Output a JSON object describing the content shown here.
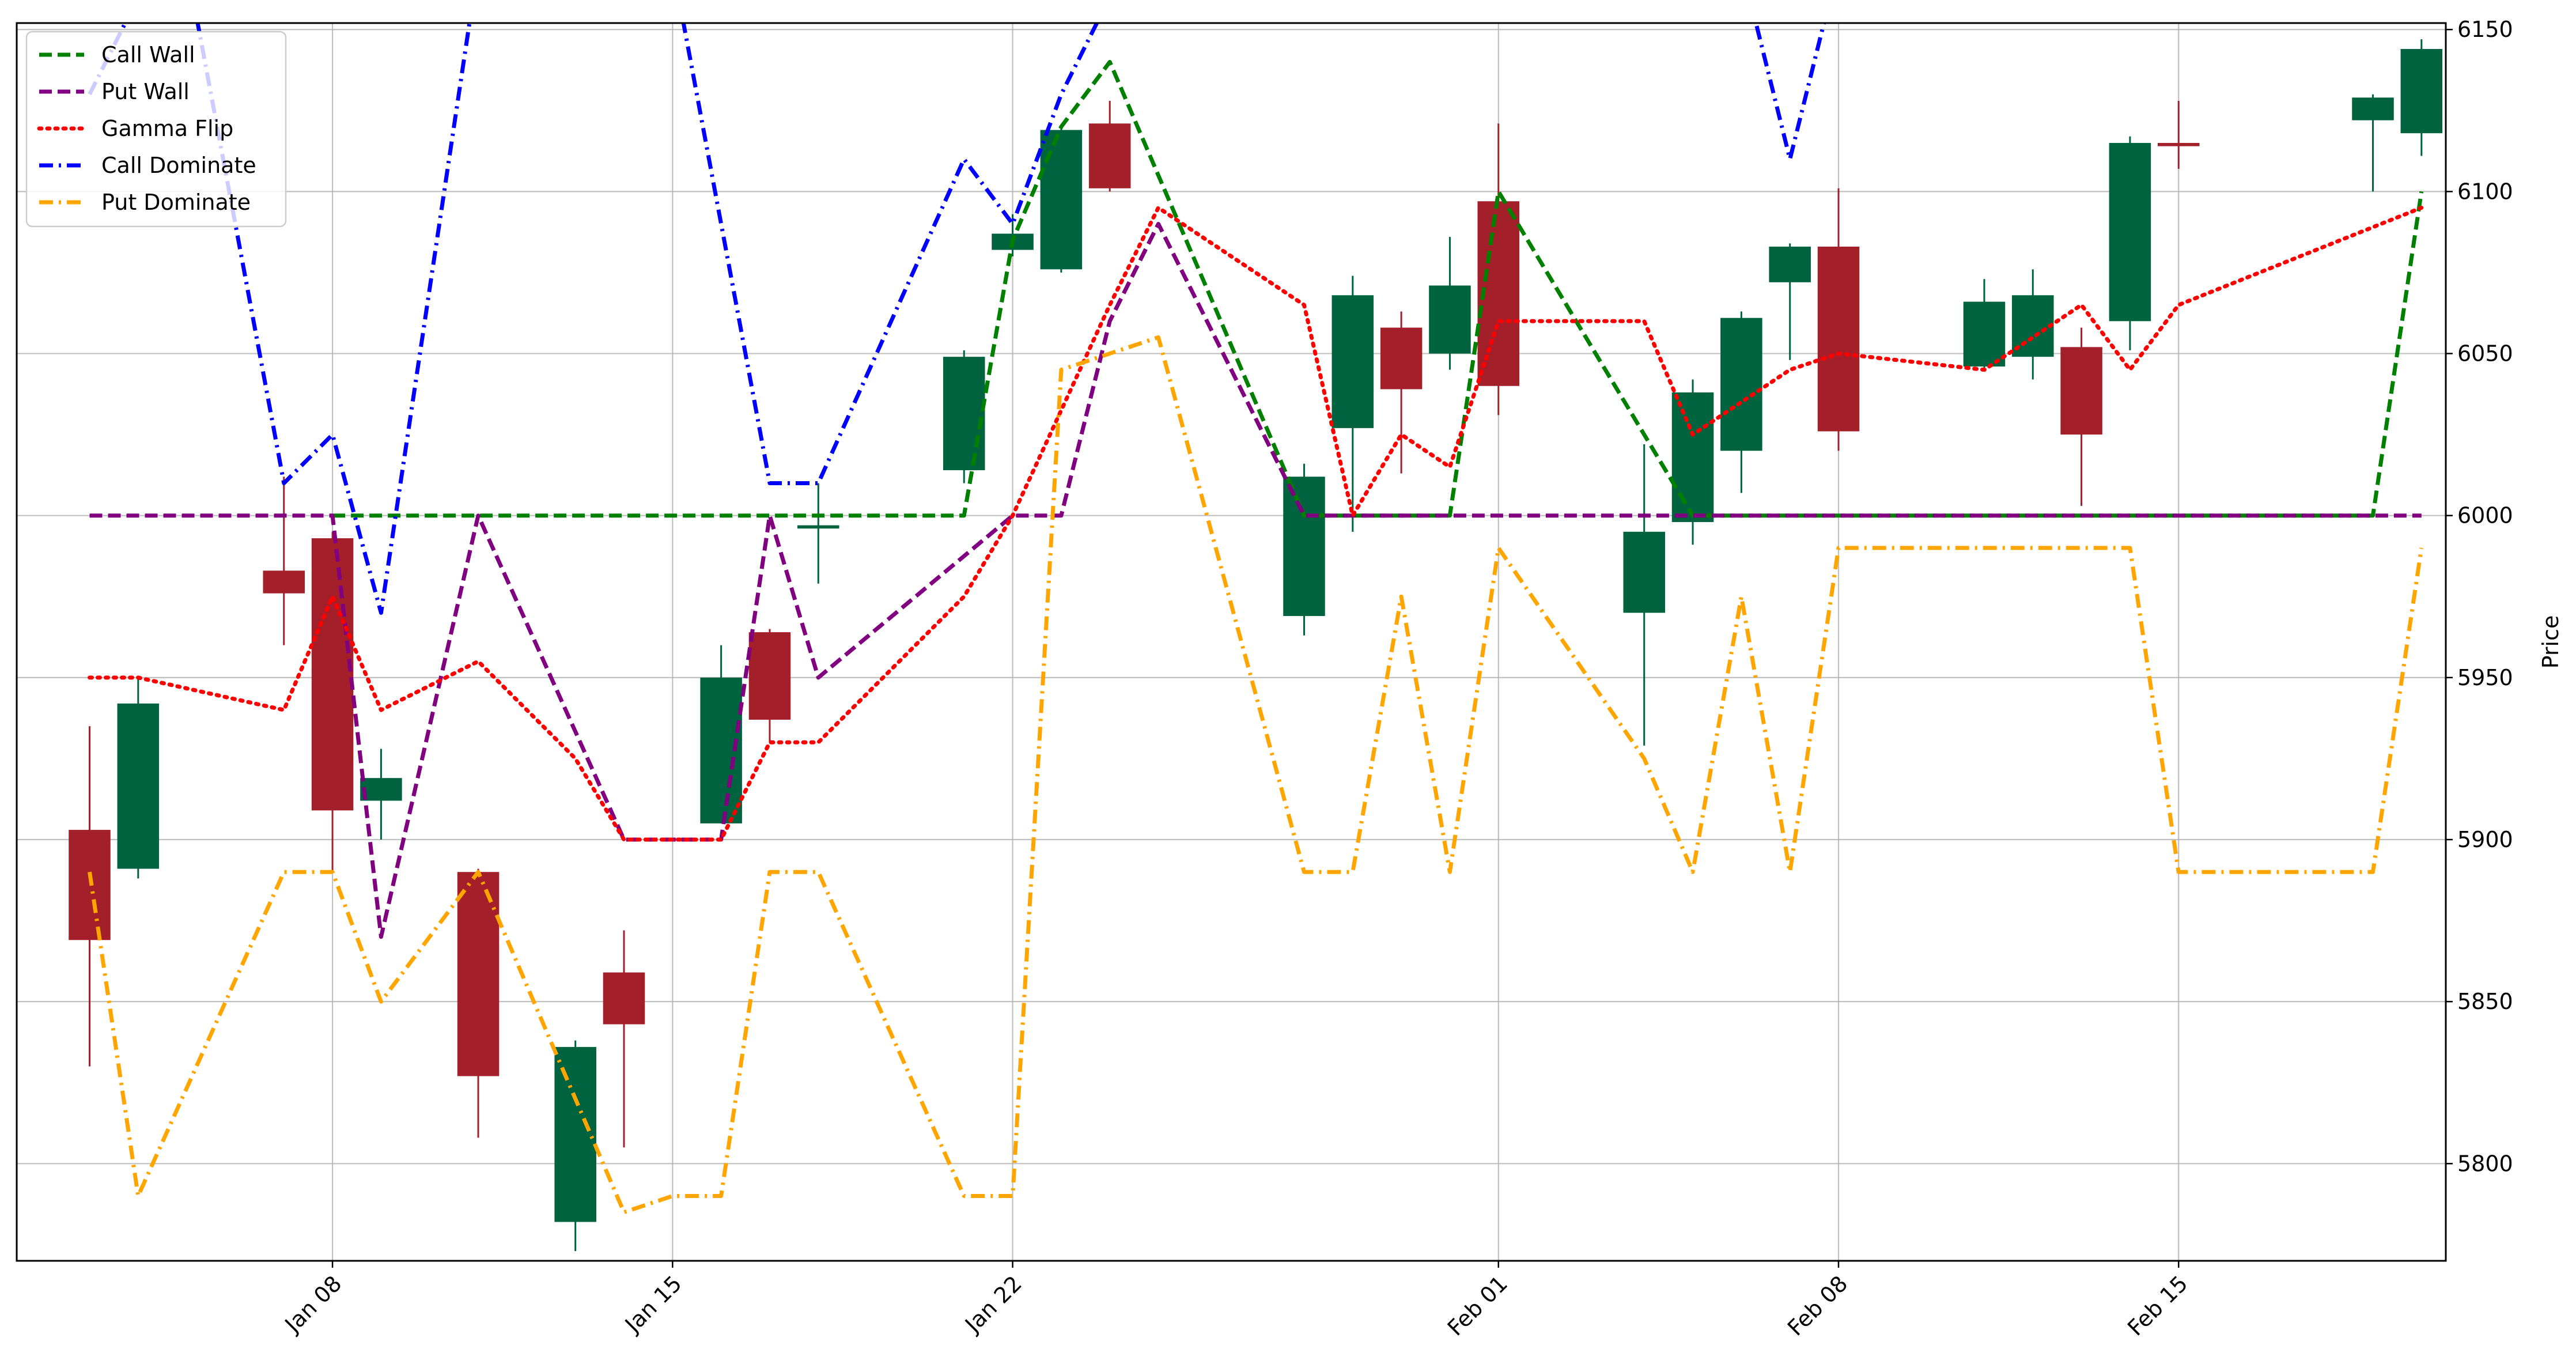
{
  "chart_data": {
    "type": "candlestick",
    "title": "",
    "xlabel": "",
    "ylabel": "Price",
    "ylim": [
      5770,
      6152
    ],
    "xlim": [
      "2025-01-02",
      "2025-02-20"
    ],
    "x_ticks": [
      {
        "date": "2025-01-08",
        "label": "Jan 08"
      },
      {
        "date": "2025-01-15",
        "label": "Jan 15"
      },
      {
        "date": "2025-01-22",
        "label": "Jan 22"
      },
      {
        "date": "2025-02-01",
        "label": "Feb 01"
      },
      {
        "date": "2025-02-08",
        "label": "Feb 08"
      },
      {
        "date": "2025-02-15",
        "label": "Feb 15"
      }
    ],
    "y_ticks": [
      5800,
      5850,
      5900,
      5950,
      6000,
      6050,
      6100,
      6150
    ],
    "y_axis_side": "right",
    "grid": true,
    "legend_position": "upper-left",
    "colors": {
      "up": "#006340",
      "down": "#A3202A"
    },
    "candles": [
      {
        "date": "2025-01-03",
        "open": 5903,
        "high": 5935,
        "low": 5830,
        "close": 5869
      },
      {
        "date": "2025-01-04",
        "open": 5891,
        "high": 5950,
        "low": 5888,
        "close": 5942
      },
      {
        "date": "2025-01-07",
        "open": 5983,
        "high": 6012,
        "low": 5960,
        "close": 5976
      },
      {
        "date": "2025-01-08",
        "open": 5993,
        "high": 5995,
        "low": 5890,
        "close": 5909
      },
      {
        "date": "2025-01-09",
        "open": 5912,
        "high": 5928,
        "low": 5900,
        "close": 5919
      },
      {
        "date": "2025-01-11",
        "open": 5890,
        "high": 5891,
        "low": 5808,
        "close": 5827
      },
      {
        "date": "2025-01-13",
        "open": 5782,
        "high": 5838,
        "low": 5773,
        "close": 5836
      },
      {
        "date": "2025-01-14",
        "open": 5859,
        "high": 5872,
        "low": 5805,
        "close": 5843
      },
      {
        "date": "2025-01-16",
        "open": 5905,
        "high": 5960,
        "low": 5905,
        "close": 5950
      },
      {
        "date": "2025-01-17",
        "open": 5964,
        "high": 5965,
        "low": 5930,
        "close": 5937
      },
      {
        "date": "2025-01-18",
        "open": 5996,
        "high": 6010,
        "low": 5979,
        "close": 5997
      },
      {
        "date": "2025-01-21",
        "open": 6014,
        "high": 6051,
        "low": 6010,
        "close": 6049
      },
      {
        "date": "2025-01-22",
        "open": 6082,
        "high": 6093,
        "low": 6080,
        "close": 6087
      },
      {
        "date": "2025-01-23",
        "open": 6076,
        "high": 6120,
        "low": 6075,
        "close": 6119
      },
      {
        "date": "2025-01-24",
        "open": 6121,
        "high": 6128,
        "low": 6100,
        "close": 6101
      },
      {
        "date": "2025-01-28",
        "open": 5969,
        "high": 6016,
        "low": 5963,
        "close": 6012
      },
      {
        "date": "2025-01-29",
        "open": 6027,
        "high": 6074,
        "low": 5995,
        "close": 6068
      },
      {
        "date": "2025-01-30",
        "open": 6058,
        "high": 6063,
        "low": 6013,
        "close": 6039
      },
      {
        "date": "2025-01-31",
        "open": 6050,
        "high": 6086,
        "low": 6045,
        "close": 6071
      },
      {
        "date": "2025-02-01",
        "open": 6097,
        "high": 6121,
        "low": 6031,
        "close": 6040
      },
      {
        "date": "2025-02-04",
        "open": 5970,
        "high": 6022,
        "low": 5929,
        "close": 5995
      },
      {
        "date": "2025-02-05",
        "open": 5998,
        "high": 6042,
        "low": 5991,
        "close": 6038
      },
      {
        "date": "2025-02-06",
        "open": 6020,
        "high": 6063,
        "low": 6007,
        "close": 6061
      },
      {
        "date": "2025-02-07",
        "open": 6072,
        "high": 6084,
        "low": 6048,
        "close": 6083
      },
      {
        "date": "2025-02-08",
        "open": 6083,
        "high": 6101,
        "low": 6020,
        "close": 6026
      },
      {
        "date": "2025-02-11",
        "open": 6046,
        "high": 6073,
        "low": 6045,
        "close": 6066
      },
      {
        "date": "2025-02-12",
        "open": 6049,
        "high": 6076,
        "low": 6042,
        "close": 6068
      },
      {
        "date": "2025-02-13",
        "open": 6052,
        "high": 6058,
        "low": 6003,
        "close": 6025
      },
      {
        "date": "2025-02-14",
        "open": 6060,
        "high": 6117,
        "low": 6051,
        "close": 6115
      },
      {
        "date": "2025-02-15",
        "open": 6115,
        "high": 6128,
        "low": 6107,
        "close": 6114
      },
      {
        "date": "2025-02-19",
        "open": 6122,
        "high": 6130,
        "low": 6100,
        "close": 6129
      },
      {
        "date": "2025-02-20",
        "open": 6118,
        "high": 6147,
        "low": 6111,
        "close": 6144
      }
    ],
    "series": [
      {
        "name": "Call Wall",
        "color": "#008000",
        "dash": "dashed",
        "points": [
          [
            "2025-01-08",
            6000
          ],
          [
            "2025-01-16",
            6000
          ],
          [
            "2025-01-21",
            6000
          ],
          [
            "2025-01-22",
            6085
          ],
          [
            "2025-01-23",
            6120
          ],
          [
            "2025-01-24",
            6140
          ],
          [
            "2025-01-28",
            6000
          ],
          [
            "2025-01-31",
            6000
          ],
          [
            "2025-02-01",
            6100
          ],
          [
            "2025-02-05",
            6000
          ],
          [
            "2025-02-19",
            6000
          ],
          [
            "2025-02-20",
            6100
          ]
        ]
      },
      {
        "name": "Put Wall",
        "color": "#800080",
        "dash": "dashed",
        "points": [
          [
            "2025-01-03",
            6000
          ],
          [
            "2025-01-08",
            6000
          ],
          [
            "2025-01-09",
            5870
          ],
          [
            "2025-01-11",
            6000
          ],
          [
            "2025-01-14",
            5900
          ],
          [
            "2025-01-16",
            5900
          ],
          [
            "2025-01-17",
            6000
          ],
          [
            "2025-01-18",
            5950
          ],
          [
            "2025-01-22",
            6000
          ],
          [
            "2025-01-23",
            6000
          ],
          [
            "2025-01-24",
            6060
          ],
          [
            "2025-01-25",
            6090
          ],
          [
            "2025-01-28",
            6000
          ],
          [
            "2025-02-20",
            6000
          ]
        ]
      },
      {
        "name": "Gamma Flip",
        "color": "#FF0000",
        "dash": "dotted",
        "points": [
          [
            "2025-01-03",
            5950
          ],
          [
            "2025-01-04",
            5950
          ],
          [
            "2025-01-07",
            5940
          ],
          [
            "2025-01-08",
            5975
          ],
          [
            "2025-01-09",
            5940
          ],
          [
            "2025-01-11",
            5955
          ],
          [
            "2025-01-13",
            5925
          ],
          [
            "2025-01-14",
            5900
          ],
          [
            "2025-01-16",
            5900
          ],
          [
            "2025-01-17",
            5930
          ],
          [
            "2025-01-18",
            5930
          ],
          [
            "2025-01-21",
            5975
          ],
          [
            "2025-01-22",
            6000
          ],
          [
            "2025-01-24",
            6065
          ],
          [
            "2025-01-25",
            6095
          ],
          [
            "2025-01-28",
            6065
          ],
          [
            "2025-01-29",
            6000
          ],
          [
            "2025-01-30",
            6025
          ],
          [
            "2025-01-31",
            6015
          ],
          [
            "2025-02-01",
            6060
          ],
          [
            "2025-02-04",
            6060
          ],
          [
            "2025-02-05",
            6025
          ],
          [
            "2025-02-07",
            6045
          ],
          [
            "2025-02-08",
            6050
          ],
          [
            "2025-02-11",
            6045
          ],
          [
            "2025-02-13",
            6065
          ],
          [
            "2025-02-14",
            6045
          ],
          [
            "2025-02-15",
            6065
          ],
          [
            "2025-02-20",
            6095
          ]
        ]
      },
      {
        "name": "Call Dominate",
        "color": "#0000FF",
        "dash": "dashdot",
        "points": [
          [
            "2025-01-03",
            6130
          ],
          [
            "2025-01-04",
            6160
          ],
          [
            "2025-01-05",
            6170
          ],
          [
            "2025-01-07",
            6010
          ],
          [
            "2025-01-08",
            6025
          ],
          [
            "2025-01-09",
            5970
          ],
          [
            "2025-01-11",
            6170
          ],
          [
            "2025-01-15",
            6170
          ],
          [
            "2025-01-17",
            6010
          ],
          [
            "2025-01-18",
            6010
          ],
          [
            "2025-01-21",
            6110
          ],
          [
            "2025-01-22",
            6090
          ],
          [
            "2025-01-23",
            6130
          ],
          [
            "2025-01-24",
            6160
          ],
          [
            "2025-01-25",
            6170
          ],
          [
            "2025-02-06",
            6170
          ],
          [
            "2025-02-07",
            6110
          ],
          [
            "2025-02-08",
            6170
          ]
        ]
      },
      {
        "name": "Put Dominate",
        "color": "#FFA500",
        "dash": "dashdot",
        "points": [
          [
            "2025-01-03",
            5890
          ],
          [
            "2025-01-04",
            5790
          ],
          [
            "2025-01-07",
            5890
          ],
          [
            "2025-01-08",
            5890
          ],
          [
            "2025-01-09",
            5850
          ],
          [
            "2025-01-11",
            5890
          ],
          [
            "2025-01-14",
            5785
          ],
          [
            "2025-01-15",
            5790
          ],
          [
            "2025-01-16",
            5790
          ],
          [
            "2025-01-17",
            5890
          ],
          [
            "2025-01-18",
            5890
          ],
          [
            "2025-01-21",
            5790
          ],
          [
            "2025-01-22",
            5790
          ],
          [
            "2025-01-23",
            6045
          ],
          [
            "2025-01-25",
            6055
          ],
          [
            "2025-01-28",
            5890
          ],
          [
            "2025-01-29",
            5890
          ],
          [
            "2025-01-30",
            5975
          ],
          [
            "2025-01-31",
            5890
          ],
          [
            "2025-02-01",
            5990
          ],
          [
            "2025-02-04",
            5925
          ],
          [
            "2025-02-05",
            5890
          ],
          [
            "2025-02-06",
            5975
          ],
          [
            "2025-02-07",
            5890
          ],
          [
            "2025-02-08",
            5990
          ],
          [
            "2025-02-14",
            5990
          ],
          [
            "2025-02-15",
            5890
          ],
          [
            "2025-02-19",
            5890
          ],
          [
            "2025-02-20",
            5990
          ]
        ]
      }
    ]
  }
}
